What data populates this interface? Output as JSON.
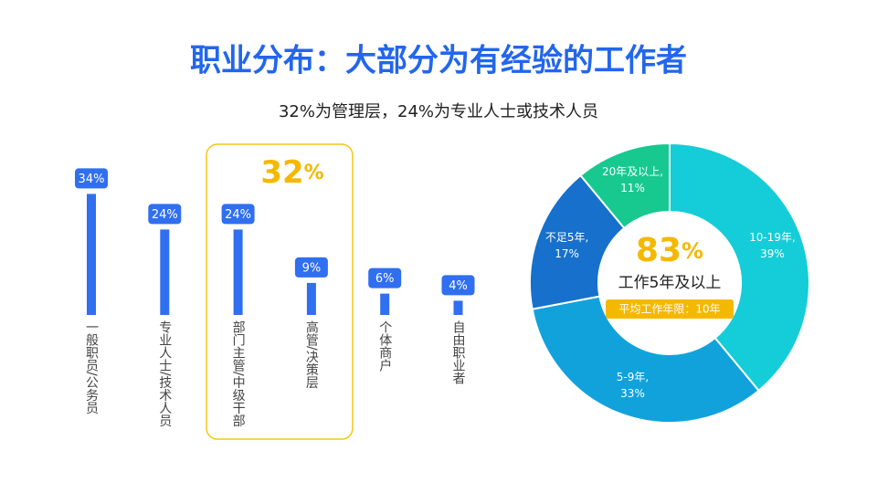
{
  "title": "职业分布：大部分为有经验的工作者",
  "subtitle": "32%为管理层，24%为专业人士或技术人员",
  "chart_data": [
    {
      "type": "bar",
      "categories": [
        "一般职员/公务员",
        "专业人士/技术人员",
        "部门主管/中级干部",
        "高管/决策层",
        "个体商户",
        "自由职业者"
      ],
      "values": [
        34,
        24,
        24,
        9,
        6,
        4
      ],
      "value_labels": [
        "34%",
        "24%",
        "24%",
        "9%",
        "6%",
        "4%"
      ],
      "color": "#2f6ff0",
      "highlight": {
        "number": "32",
        "unit": "%",
        "color": "#f5b800"
      }
    },
    {
      "type": "donut",
      "categories": [
        "10-19年,",
        "5-9年,",
        "不足5年,",
        "20年及以上,"
      ],
      "values": [
        39,
        33,
        17,
        11
      ],
      "value_labels": [
        "39%",
        "33%",
        "17%",
        "11%"
      ],
      "colors": [
        "#14cdd8",
        "#11a2dc",
        "#1670cc",
        "#17c98f"
      ],
      "center_number": "83",
      "center_unit": "%",
      "center_text": "工作5年及以上",
      "badge": "平均工作年限：10年"
    }
  ]
}
